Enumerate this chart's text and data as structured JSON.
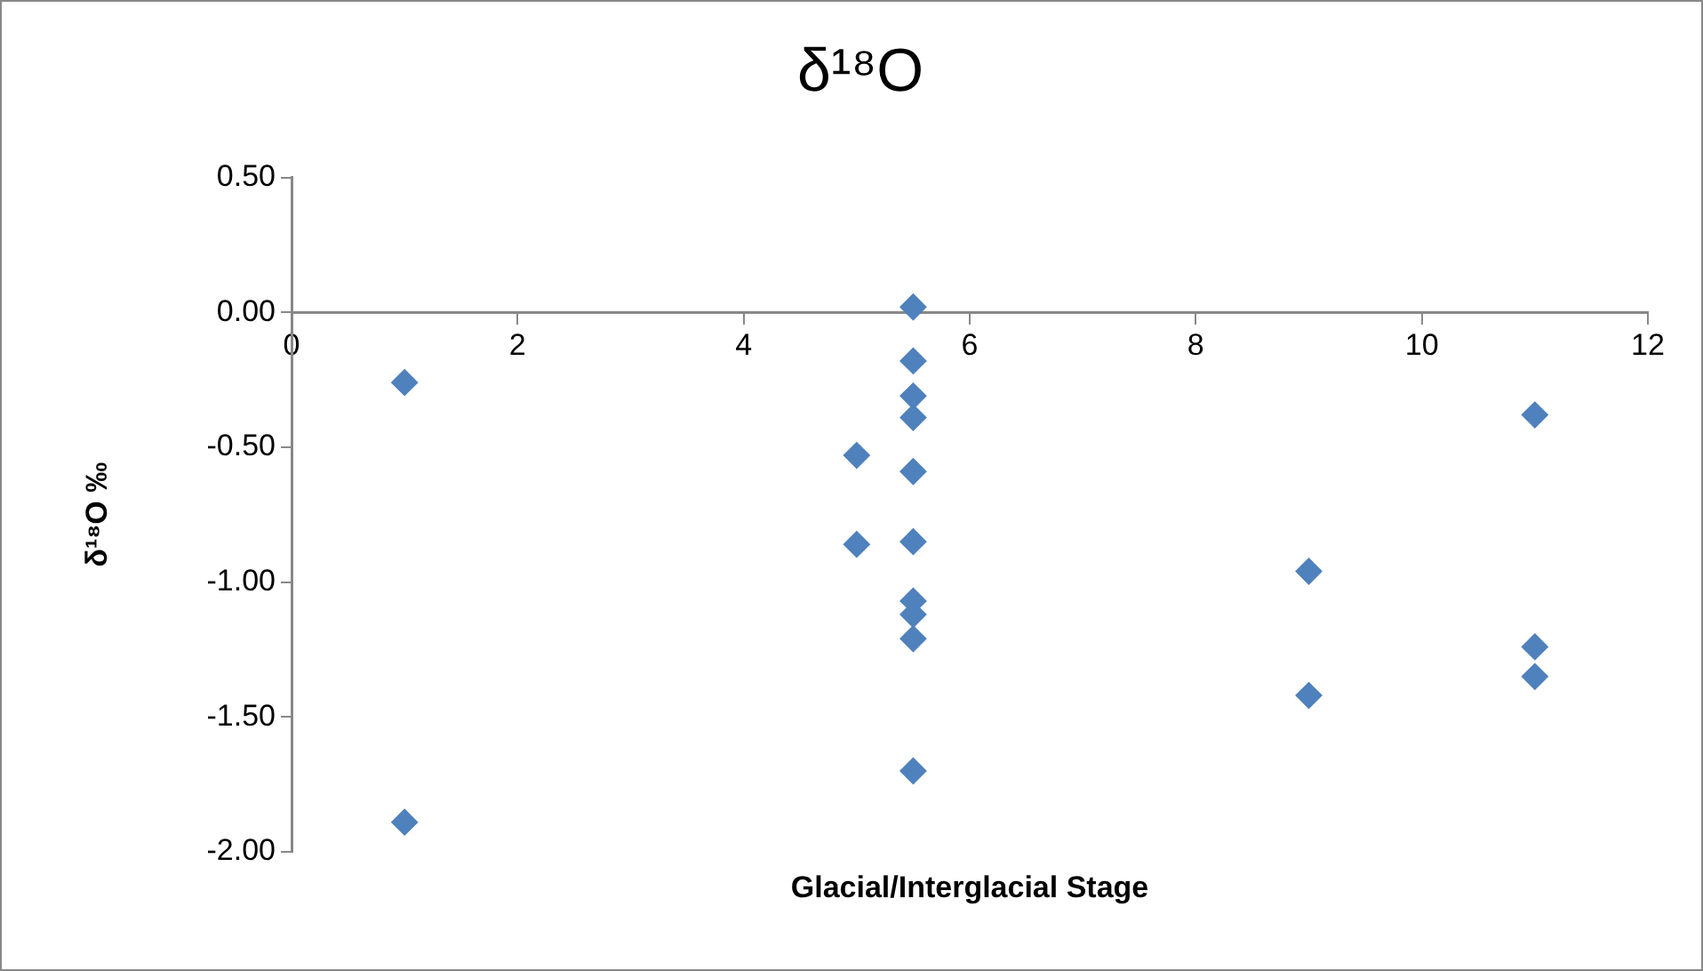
{
  "chart_data": {
    "type": "scatter",
    "title": "δ¹⁸O",
    "xlabel": "Glacial/Interglacial Stage",
    "ylabel": "δ¹⁸O ‰",
    "series": [
      {
        "color": "#4f81bd",
        "x": [
          1,
          1,
          5,
          5,
          5.5,
          5.5,
          5.5,
          5.5,
          5.5,
          5.5,
          5.5,
          5.5,
          5.5,
          5.5,
          9,
          9,
          11,
          11,
          11
        ],
        "values": [
          -0.26,
          -1.89,
          -0.53,
          -0.86,
          0.02,
          -0.18,
          -0.31,
          -0.39,
          -0.59,
          -0.85,
          -1.07,
          -1.12,
          -1.21,
          -1.7,
          -0.96,
          -1.42,
          -0.38,
          -1.24,
          -1.35
        ]
      }
    ],
    "xlim": [
      0,
      12
    ],
    "xticks": [
      0,
      2,
      4,
      6,
      8,
      10,
      12
    ],
    "ylim": [
      -2,
      0.5
    ],
    "yticks": [
      {
        "value": -2,
        "label": "-2.00"
      },
      {
        "value": -1.5,
        "label": "-1.50"
      },
      {
        "value": -1,
        "label": "-1.00"
      },
      {
        "value": -0.5,
        "label": "-0.50"
      },
      {
        "value": 0,
        "label": "0.00"
      },
      {
        "value": 0.5,
        "label": "0.50"
      }
    ],
    "grid": false,
    "legend": false,
    "marker": "diamond"
  }
}
